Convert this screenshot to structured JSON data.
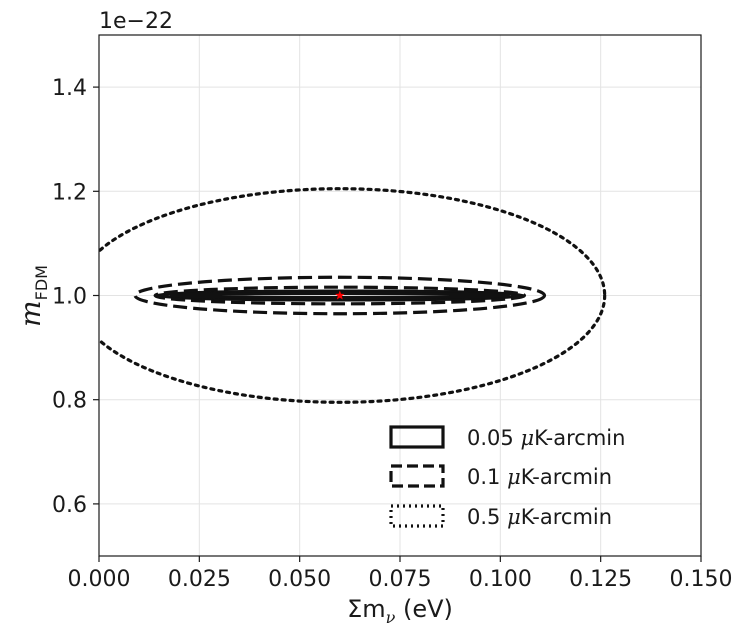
{
  "chart_data": {
    "type": "contour",
    "title": "",
    "xlabel": {
      "sym": "Σm",
      "sub": "ν",
      "unit": " (eV)"
    },
    "ylabel": {
      "sym": "m",
      "sub": "FDM"
    },
    "y_offset_text": "1e−22",
    "xlim": [
      0.0,
      0.15
    ],
    "ylim": [
      0.5,
      1.5
    ],
    "x_ticks": [
      "0.000",
      "0.025",
      "0.050",
      "0.075",
      "0.100",
      "0.125",
      "0.150"
    ],
    "x_tick_values": [
      0.0,
      0.025,
      0.05,
      0.075,
      0.1,
      0.125,
      0.15
    ],
    "y_ticks": [
      "0.6",
      "0.8",
      "1.0",
      "1.2",
      "1.4"
    ],
    "y_tick_values": [
      0.6,
      0.8,
      1.0,
      1.2,
      1.4
    ],
    "grid": true,
    "fiducial": {
      "x": 0.06,
      "y": 1.0,
      "color": "#ff0000",
      "marker": "star"
    },
    "series": [
      {
        "name": "0.05 μK-arcmin",
        "style": "solid",
        "center": [
          0.06,
          1.0
        ],
        "ellipses": [
          {
            "rx": 0.046,
            "ry": 0.0085
          },
          {
            "rx": 0.042,
            "ry": 0.004
          }
        ]
      },
      {
        "name": "0.1 μK-arcmin",
        "style": "dashed",
        "center": [
          0.06,
          1.0
        ],
        "ellipses": [
          {
            "rx": 0.051,
            "ry": 0.035
          },
          {
            "rx": 0.046,
            "ry": 0.016
          }
        ]
      },
      {
        "name": "0.5 μK-arcmin",
        "style": "dotted",
        "center": [
          0.06,
          1.0
        ],
        "ellipses": [
          {
            "rx": 0.066,
            "ry": 0.205
          }
        ]
      }
    ],
    "legend_position": "lower-right",
    "legend_labels": [
      {
        "pre": "0.05 ",
        "mu": "μ",
        "post": "K-arcmin"
      },
      {
        "pre": "0.1 ",
        "mu": "μ",
        "post": "K-arcmin"
      },
      {
        "pre": "0.5 ",
        "mu": "μ",
        "post": "K-arcmin"
      }
    ]
  }
}
